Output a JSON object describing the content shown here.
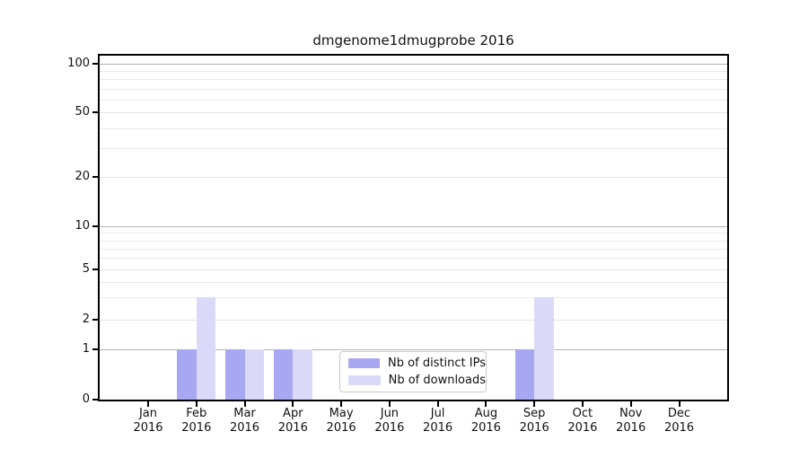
{
  "chart_data": {
    "type": "bar",
    "title": "dmgenome1dmugprobe 2016",
    "categories": [
      "Jan 2016",
      "Feb 2016",
      "Mar 2016",
      "Apr 2016",
      "May 2016",
      "Jun 2016",
      "Jul 2016",
      "Aug 2016",
      "Sep 2016",
      "Oct 2016",
      "Nov 2016",
      "Dec 2016"
    ],
    "series": [
      {
        "name": "Nb of distinct IPs",
        "color": "#a8a8f2",
        "values": [
          0,
          1,
          1,
          1,
          0,
          0,
          0,
          0,
          1,
          0,
          0,
          0
        ]
      },
      {
        "name": "Nb of downloads",
        "color": "#dadaf8",
        "values": [
          0,
          3,
          1,
          1,
          0,
          0,
          0,
          0,
          3,
          0,
          0,
          0
        ]
      }
    ],
    "xaxis": {
      "months": [
        "Jan",
        "Feb",
        "Mar",
        "Apr",
        "May",
        "Jun",
        "Jul",
        "Aug",
        "Sep",
        "Oct",
        "Nov",
        "Dec"
      ],
      "year": "2016"
    },
    "yaxis": {
      "scale": "symlog-like (linear 0-1, log above)",
      "major_ticks": [
        0,
        1,
        2,
        5,
        10,
        20,
        50,
        100
      ],
      "power_gridlines": [
        1,
        10,
        100
      ],
      "minor_gridlines": [
        3,
        4,
        6,
        7,
        8,
        9,
        30,
        40,
        60,
        70,
        80,
        90
      ],
      "range": [
        0,
        113
      ]
    },
    "grid": true,
    "legend_position": "lower center"
  },
  "legend": {
    "items": [
      {
        "label": "Nb of distinct IPs",
        "color": "#a8a8f2"
      },
      {
        "label": "Nb of downloads",
        "color": "#dadaf8"
      }
    ]
  },
  "colors": {
    "background": "#ffffff",
    "spine": "#000000",
    "grid_power": "#b3b3b3",
    "grid_light": "#e9e9e9",
    "text": "#111111",
    "legend_border": "#c9c9c9"
  }
}
